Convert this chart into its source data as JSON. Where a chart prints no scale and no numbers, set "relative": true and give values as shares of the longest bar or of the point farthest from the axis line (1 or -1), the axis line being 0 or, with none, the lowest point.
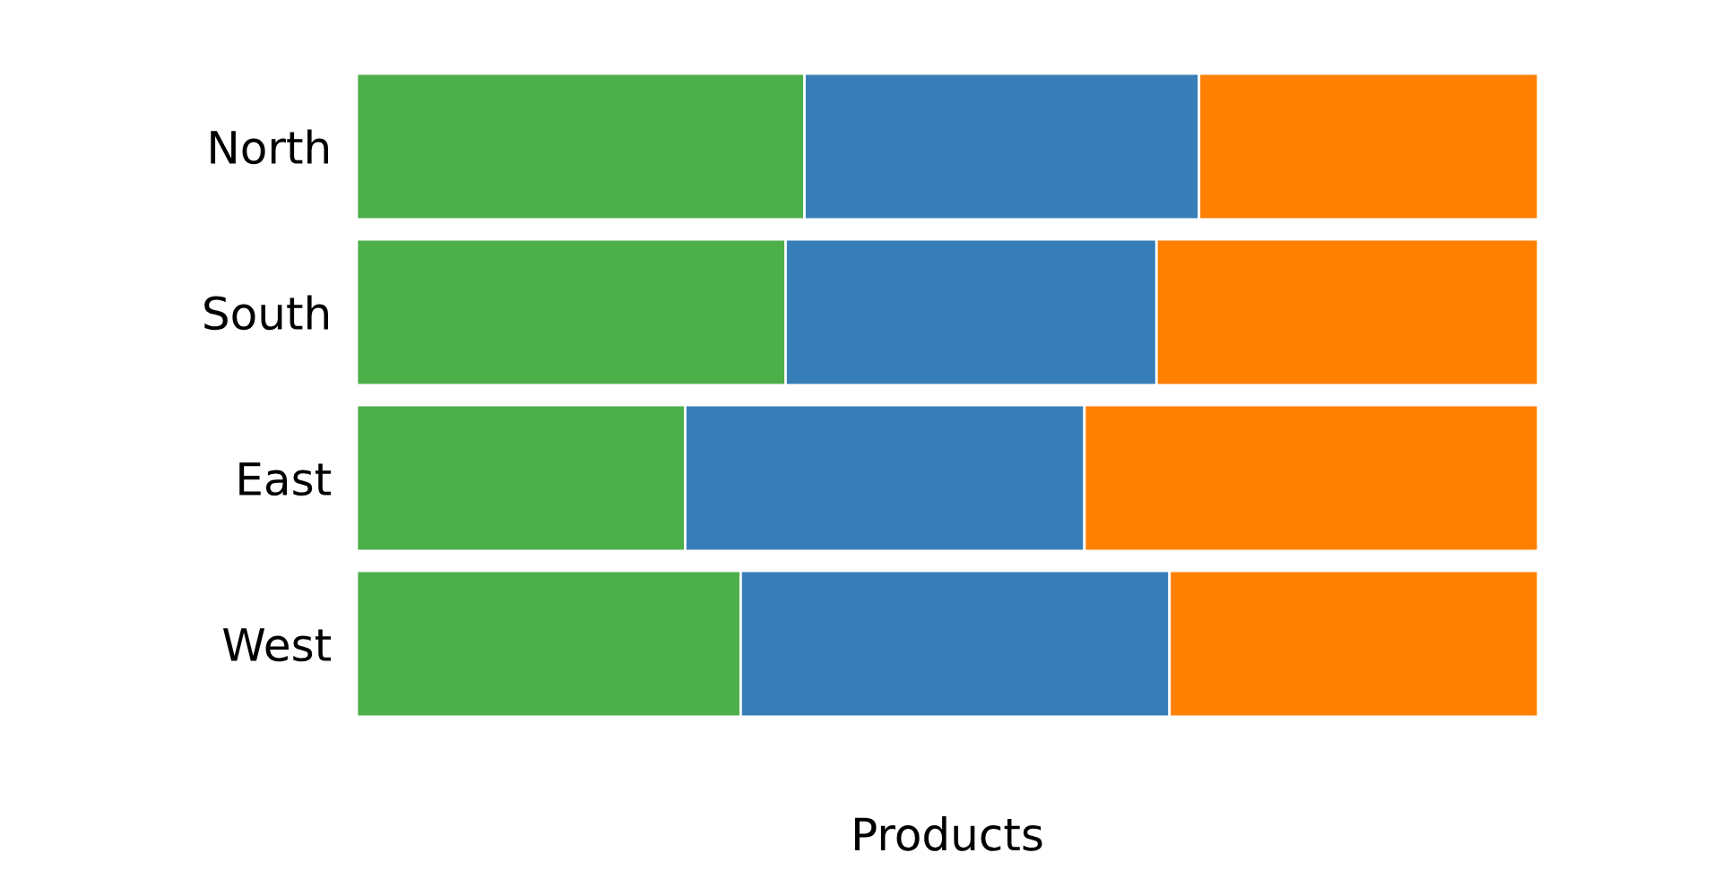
{
  "chart_data": {
    "type": "bar",
    "orientation": "horizontal",
    "stacked": true,
    "relative": true,
    "xlabel": "Products",
    "categories": [
      "North",
      "South",
      "East",
      "West"
    ],
    "series": [
      {
        "color": "#4daf4a",
        "values": [
          0.379,
          0.363,
          0.278,
          0.325
        ]
      },
      {
        "color": "#377eb8",
        "values": [
          0.334,
          0.314,
          0.338,
          0.363
        ]
      },
      {
        "color": "#ff7f00",
        "values": [
          0.287,
          0.323,
          0.384,
          0.312
        ]
      }
    ]
  }
}
